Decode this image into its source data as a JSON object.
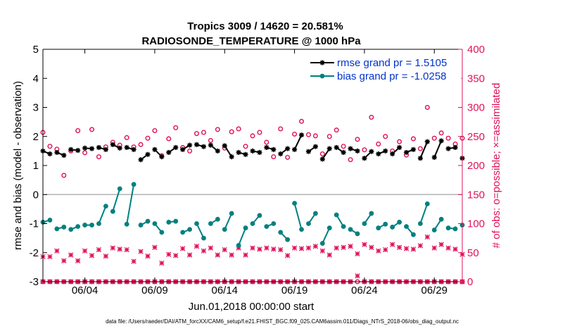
{
  "chart_data": {
    "type": "scatter",
    "title": "Tropics 3009 / 14620 = 20.581%",
    "subtitle": "RADIOSONDE_TEMPERATURE @ 1000 hPa",
    "xlabel": "Jun.01,2018 00:00:00 start",
    "ylabel_left": "rmse and bias (model - observation)",
    "ylabel_right": "# of obs: o=possible; ×=assimilated",
    "footnote": "data file: /Users/raeder/DAI/ATM_forcXX/CAM6_setup/f.e21.FHIST_BGC.f09_025.CAM6assim.011/Diags_NTrS_2018-06/obs_diag_output.nc",
    "xlim": [
      1,
      31
    ],
    "ylim_left": [
      -3,
      5
    ],
    "ylim_right": [
      0,
      400
    ],
    "x_ticks": [
      4,
      9,
      14,
      19,
      24,
      29
    ],
    "x_tick_labels": [
      "06/04",
      "06/09",
      "06/14",
      "06/19",
      "06/24",
      "06/29"
    ],
    "y_ticks_left": [
      "-3",
      "-2",
      "-1",
      "0",
      "1",
      "2",
      "3",
      "4",
      "5"
    ],
    "y_ticks_right": [
      "0",
      "50",
      "100",
      "150",
      "200",
      "250",
      "300",
      "350",
      "400"
    ],
    "colors": {
      "rmse": "#000000",
      "bias": "#008080",
      "obs": "#e0105a",
      "zero_line": "#b3b3b3",
      "legend_text": "#0033cc"
    },
    "legend": [
      {
        "label": "rmse grand pr = 1.5105",
        "series": "rmse"
      },
      {
        "label": "bias grand pr = -1.0258",
        "series": "bias"
      }
    ],
    "t_start": 1.0,
    "t_step": 0.5,
    "series": [
      {
        "name": "rmse",
        "axis": "left",
        "marker": "star",
        "line": "segments",
        "values": [
          1.5,
          1.4,
          1.45,
          1.35,
          1.55,
          1.52,
          1.6,
          1.58,
          1.62,
          1.55,
          1.72,
          1.6,
          1.62,
          1.55,
          1.2,
          1.38,
          1.55,
          1.3,
          1.45,
          1.62,
          1.55,
          1.7,
          1.72,
          1.65,
          1.7,
          1.5,
          1.68,
          1.3,
          1.45,
          1.38,
          1.5,
          1.45,
          1.62,
          1.55,
          1.4,
          1.58,
          1.55,
          2.05,
          1.48,
          1.65,
          1.22,
          1.58,
          1.62,
          1.45,
          1.58,
          1.5,
          1.25,
          1.48,
          1.4,
          1.5,
          1.4,
          1.62,
          1.45,
          1.55,
          1.25,
          1.82,
          1.28,
          1.85,
          1.58,
          1.62,
          1.25
        ]
      },
      {
        "name": "bias",
        "axis": "left",
        "marker": "dot",
        "line": "segments",
        "values": [
          -0.95,
          -0.88,
          -1.18,
          -1.12,
          -1.2,
          -1.1,
          -1.05,
          -1.05,
          -1.0,
          -0.4,
          -0.58,
          0.2,
          -1.02,
          0.35,
          -1.05,
          -0.92,
          -1.0,
          -1.3,
          -0.95,
          -0.92,
          -1.3,
          -1.2,
          -1.0,
          -1.5,
          -1.0,
          -0.85,
          -1.2,
          -0.65,
          -1.75,
          -1.15,
          -1.0,
          -0.72,
          -1.1,
          -1.0,
          -1.3,
          -1.55,
          -0.3,
          -1.2,
          -1.0,
          -0.65,
          -1.68,
          -1.15,
          -0.7,
          -1.1,
          -1.2,
          -1.35,
          -1.0,
          -0.65,
          -1.15,
          -1.02,
          -1.12,
          -0.95,
          -1.1,
          -1.38,
          -1.0,
          -0.32,
          -1.22,
          -0.85,
          -1.15,
          -1.18,
          -1.05
        ]
      },
      {
        "name": "obs_possible",
        "axis": "right",
        "marker": "circle",
        "line": "none",
        "values": [
          257,
          233,
          228,
          183,
          225,
          260,
          222,
          262,
          215,
          232,
          240,
          235,
          248,
          232,
          236,
          247,
          260,
          217,
          246,
          265,
          231,
          225,
          255,
          257,
          243,
          262,
          230,
          258,
          263,
          233,
          251,
          257,
          240,
          215,
          263,
          214,
          254,
          276,
          253,
          251,
          220,
          250,
          261,
          233,
          210,
          245,
          227,
          283,
          237,
          250,
          225,
          241,
          218,
          246,
          229,
          300,
          247,
          256,
          247,
          237,
          247
        ]
      },
      {
        "name": "obs_assimilated",
        "axis": "right",
        "marker": "x",
        "line": "none",
        "values": [
          43,
          43,
          53,
          36,
          46,
          36,
          53,
          45,
          55,
          44,
          58,
          56,
          55,
          35,
          52,
          44,
          59,
          32,
          47,
          45,
          57,
          46,
          61,
          53,
          58,
          46,
          55,
          46,
          58,
          46,
          58,
          56,
          58,
          56,
          55,
          45,
          58,
          57,
          58,
          61,
          53,
          46,
          58,
          59,
          61,
          48,
          64,
          59,
          53,
          55,
          64,
          59,
          57,
          56,
          62,
          77,
          58,
          64,
          58,
          56,
          47
        ]
      },
      {
        "name": "obs_possible_low",
        "axis": "right",
        "marker": "circle",
        "line": "none",
        "values": [
          0,
          0,
          0,
          0,
          0,
          0,
          0,
          0,
          0,
          0,
          0,
          0,
          0,
          0,
          0,
          0,
          0,
          0,
          0,
          0,
          0,
          0,
          0,
          0,
          0,
          0,
          0,
          0,
          0,
          0,
          0,
          0,
          0,
          0,
          0,
          0,
          0,
          0,
          0,
          0,
          0,
          0,
          0,
          0,
          0,
          0,
          0,
          0,
          0,
          0,
          0,
          0,
          0,
          0,
          0,
          0,
          0,
          0,
          0,
          0,
          0
        ]
      },
      {
        "name": "obs_assimilated_low",
        "axis": "right",
        "marker": "x",
        "line": "none",
        "values": [
          0,
          0,
          0,
          0,
          0,
          0,
          0,
          0,
          0,
          0,
          0,
          0,
          0,
          0,
          0,
          0,
          0,
          0,
          0,
          0,
          0,
          0,
          0,
          0,
          0,
          0,
          0,
          0,
          0,
          0,
          0,
          0,
          0,
          0,
          0,
          0,
          0,
          0,
          0,
          0,
          0,
          0,
          0,
          0,
          0,
          10,
          0,
          0,
          0,
          0,
          0,
          0,
          0,
          0,
          0,
          0,
          0,
          0,
          0,
          0,
          0
        ]
      }
    ]
  }
}
